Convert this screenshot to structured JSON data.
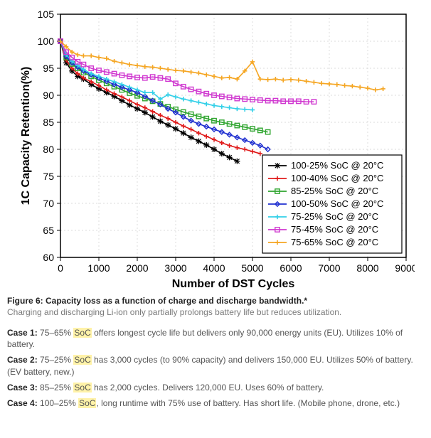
{
  "chart": {
    "type": "line",
    "background_color": "#ffffff",
    "plot_bg_color": "#ffffff",
    "grid_color": "#cfcfcf",
    "axis_color": "#000000",
    "xlabel": "Number of DST Cycles",
    "ylabel": "1C Capacity Retention(%)",
    "label_fontsize": 16,
    "tick_fontsize": 14,
    "xlim": [
      0,
      9000
    ],
    "ylim": [
      60,
      105
    ],
    "xtick_step": 1000,
    "ytick_step": 5,
    "marker_size": 3.2,
    "line_width": 1.6,
    "series": [
      {
        "label": "100-25% SoC @ 20°C",
        "color": "#000000",
        "marker": "star",
        "x": [
          0,
          150,
          300,
          450,
          600,
          800,
          1000,
          1200,
          1400,
          1600,
          1800,
          2000,
          2200,
          2400,
          2600,
          2800,
          3000,
          3200,
          3400,
          3600,
          3800,
          4000,
          4200,
          4400,
          4600
        ],
        "y": [
          100,
          96,
          94.5,
          93.5,
          93,
          92,
          91.2,
          90.5,
          89.8,
          89,
          88.2,
          87.5,
          86.8,
          86,
          85.2,
          84.5,
          83.8,
          83,
          82.2,
          81.5,
          80.8,
          80,
          79.2,
          78.5,
          77.8
        ]
      },
      {
        "label": "100-40% SoC @ 20°C",
        "color": "#e01b1b",
        "marker": "plus",
        "x": [
          0,
          150,
          300,
          450,
          600,
          800,
          1000,
          1200,
          1400,
          1600,
          1800,
          2000,
          2200,
          2400,
          2600,
          2800,
          3000,
          3200,
          3400,
          3600,
          3800,
          4000,
          4200,
          4400,
          4600,
          4800,
          5000,
          5200
        ],
        "y": [
          100,
          96.5,
          95,
          94,
          93.2,
          92.5,
          91.8,
          91,
          90.3,
          89.7,
          89,
          88.3,
          87.7,
          87,
          86.3,
          85.7,
          85,
          84.3,
          83.7,
          83,
          82.4,
          81.8,
          81.2,
          80.7,
          80.3,
          80,
          79.6,
          79.2
        ]
      },
      {
        "label": "85-25% SoC @ 20°C",
        "color": "#2fa52f",
        "marker": "square",
        "x": [
          0,
          150,
          300,
          450,
          600,
          800,
          1000,
          1200,
          1400,
          1600,
          1800,
          2000,
          2200,
          2400,
          2600,
          2800,
          3000,
          3200,
          3400,
          3600,
          3800,
          4000,
          4200,
          4400,
          4600,
          4800,
          5000,
          5200,
          5400
        ],
        "y": [
          100,
          97,
          95.8,
          95,
          94.2,
          93.5,
          92.8,
          92.2,
          91.6,
          91,
          90.4,
          89.9,
          89.4,
          88.9,
          88.4,
          87.9,
          87.4,
          86.9,
          86.5,
          86.1,
          85.7,
          85.3,
          85,
          84.7,
          84.4,
          84.1,
          83.8,
          83.5,
          83.2
        ]
      },
      {
        "label": "100-50% SoC @ 20°C",
        "color": "#2030d0",
        "marker": "diamond",
        "x": [
          0,
          150,
          300,
          450,
          600,
          800,
          1000,
          1200,
          1400,
          1600,
          1800,
          2000,
          2200,
          2400,
          2600,
          2800,
          3000,
          3200,
          3400,
          3600,
          3800,
          4000,
          4200,
          4400,
          4600,
          4800,
          5000,
          5200,
          5400
        ],
        "y": [
          100,
          97.2,
          96,
          95.2,
          94.5,
          93.8,
          93.2,
          92.6,
          92,
          91.5,
          91,
          90.5,
          89.8,
          89,
          88.3,
          87.5,
          86.8,
          86,
          85.3,
          84.7,
          84.2,
          83.7,
          83.2,
          82.7,
          82.2,
          81.7,
          81.2,
          80.7,
          80
        ]
      },
      {
        "label": "75-25% SoC @ 20°C",
        "color": "#33d0e8",
        "marker": "plus",
        "x": [
          0,
          150,
          300,
          450,
          600,
          800,
          1000,
          1200,
          1400,
          1600,
          1800,
          2000,
          2200,
          2400,
          2600,
          2800,
          3000,
          3200,
          3400,
          3600,
          3800,
          4000,
          4200,
          4400,
          4600,
          4800,
          5000
        ],
        "y": [
          100,
          97.5,
          96.3,
          95.5,
          94.8,
          94,
          93.5,
          93,
          92.5,
          92,
          91.5,
          91,
          90.5,
          90.5,
          89.3,
          90.1,
          89.7,
          89.3,
          89,
          88.7,
          88.4,
          88.1,
          87.9,
          87.7,
          87.5,
          87.4,
          87.3
        ]
      },
      {
        "label": "75-45% SoC @ 20°C",
        "color": "#d038d0",
        "marker": "square",
        "x": [
          0,
          150,
          300,
          450,
          600,
          800,
          1000,
          1200,
          1400,
          1600,
          1800,
          2000,
          2200,
          2400,
          2600,
          2800,
          3000,
          3200,
          3400,
          3600,
          3800,
          4000,
          4200,
          4400,
          4600,
          4800,
          5000,
          5200,
          5400,
          5600,
          5800,
          6000,
          6200,
          6400,
          6600
        ],
        "y": [
          100,
          98,
          97,
          96.2,
          95.7,
          95,
          94.6,
          94.3,
          94,
          93.7,
          93.5,
          93.3,
          93.2,
          93.4,
          93.2,
          93,
          92.2,
          91.6,
          91.1,
          90.7,
          90.3,
          90,
          89.8,
          89.6,
          89.4,
          89.3,
          89.2,
          89.1,
          89,
          89,
          88.9,
          88.9,
          88.9,
          88.8,
          88.8
        ]
      },
      {
        "label": "75-65% SoC @ 20°C",
        "color": "#f5a623",
        "marker": "plus",
        "x": [
          0,
          150,
          300,
          450,
          600,
          800,
          1000,
          1200,
          1400,
          1600,
          1800,
          2000,
          2200,
          2400,
          2600,
          2800,
          3000,
          3200,
          3400,
          3600,
          3800,
          4000,
          4200,
          4400,
          4600,
          4800,
          5000,
          5200,
          5400,
          5600,
          5800,
          6000,
          6200,
          6400,
          6600,
          6800,
          7000,
          7200,
          7400,
          7600,
          7800,
          8000,
          8200,
          8400
        ],
        "y": [
          100,
          99,
          98,
          97.5,
          97.3,
          97.3,
          97,
          96.8,
          96.3,
          96,
          95.7,
          95.5,
          95.3,
          95.2,
          95,
          94.8,
          94.6,
          94.5,
          94.3,
          94.1,
          93.8,
          93.5,
          93.2,
          93.3,
          93,
          94.5,
          96.2,
          93,
          92.9,
          93,
          92.8,
          92.9,
          92.8,
          92.6,
          92.4,
          92.2,
          92.1,
          92,
          91.8,
          91.7,
          91.5,
          91.3,
          91,
          91.2
        ]
      }
    ],
    "legend": {
      "position": "lower-right",
      "border_color": "#000000",
      "bg_color": "#ffffff"
    }
  },
  "caption": {
    "title": "Figure 6: Capacity loss as a function of charge and discharge bandwidth.*",
    "subtitle": "Charging and discharging Li-ion only partially prolongs battery life but reduces utilization."
  },
  "cases": [
    {
      "label": "Case 1:",
      "pre": " 75–65% ",
      "hl": "SoC",
      "post": " offers longest cycle life but delivers only 90,000 energy units (EU). Utilizes 10% of battery."
    },
    {
      "label": "Case 2:",
      "pre": " 75–25% ",
      "hl": "SoC",
      "post": " has 3,000 cycles (to 90% capacity) and delivers 150,000 EU. Utilizes 50% of battery. (EV battery, new.)"
    },
    {
      "label": "Case 3:",
      "pre": " 85–25% ",
      "hl": "SoC",
      "post": " has 2,000 cycles. Delivers 120,000 EU. Uses 60% of battery."
    },
    {
      "label": "Case 4:",
      "pre": " 100–25% ",
      "hl": "SoC",
      "post": ", long runtime with 75% use of battery. Has short life. (Mobile phone, drone, etc.)"
    }
  ]
}
